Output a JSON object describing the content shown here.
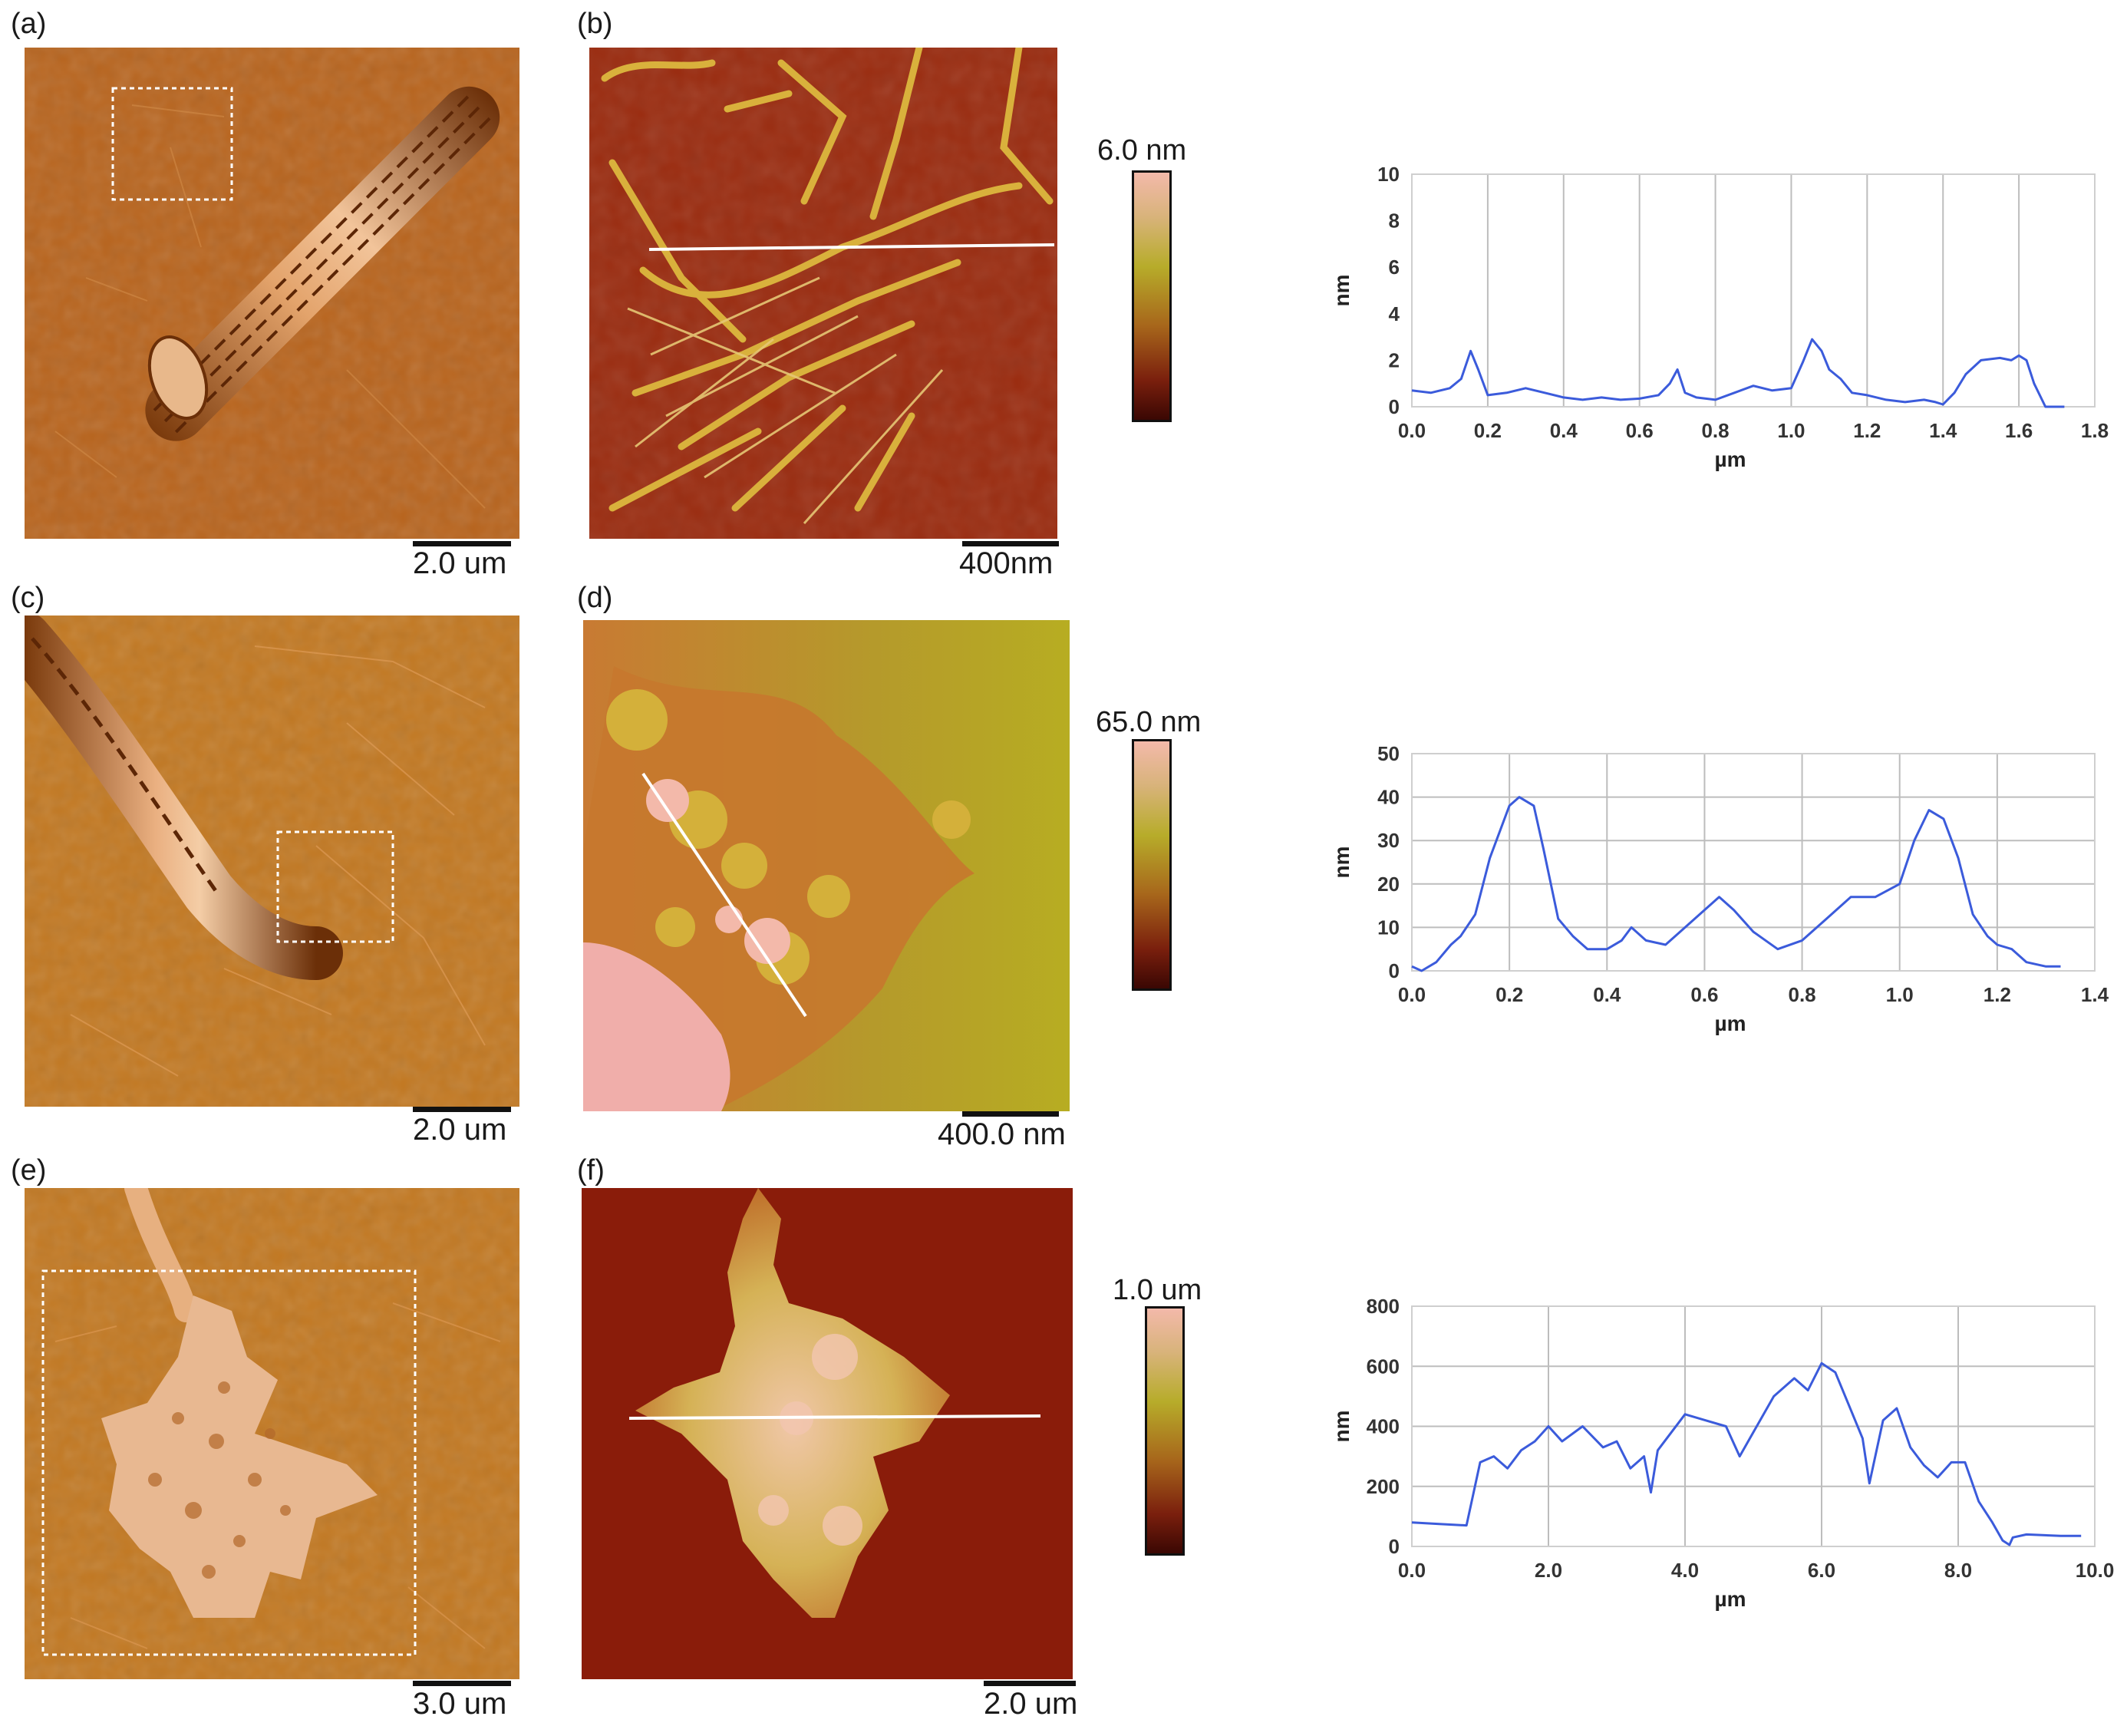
{
  "figure": {
    "rows": [
      {
        "amp_label": "(a)",
        "height_label": "(b)",
        "amp_scale": "2.0 um",
        "height_scale": "400nm",
        "colorbar_max": "6.0 nm",
        "colors": {
          "amp_bg": "#b8641d"
        }
      },
      {
        "amp_label": "(c)",
        "height_label": "(d)",
        "amp_scale": "2.0 um",
        "height_scale": "400.0 nm",
        "colorbar_max": "65.0 nm",
        "colors": {
          "amp_bg": "#c27821"
        }
      },
      {
        "amp_label": "(e)",
        "height_label": "(f)",
        "amp_scale": "3.0 um",
        "height_scale": "2.0 um",
        "colorbar_max": "1.0 um",
        "colors": {
          "amp_bg": "#c27821"
        }
      }
    ]
  },
  "chart_data": [
    {
      "type": "line",
      "xlabel": "µm",
      "ylabel": "nm",
      "xlim": [
        0,
        1.8
      ],
      "ylim": [
        0,
        10
      ],
      "xticks": [
        "0.0",
        "0.2",
        "0.4",
        "0.6",
        "0.8",
        "1.0",
        "1.2",
        "1.4",
        "1.6",
        "1.8"
      ],
      "yticks": [
        "0",
        "2",
        "4",
        "6",
        "8",
        "10"
      ],
      "grid": "vertical",
      "line_color": "#3b5bdb",
      "series": [
        {
          "x": [
            0.0,
            0.05,
            0.1,
            0.13,
            0.155,
            0.175,
            0.2,
            0.25,
            0.3,
            0.35,
            0.4,
            0.45,
            0.5,
            0.55,
            0.6,
            0.65,
            0.68,
            0.7,
            0.72,
            0.75,
            0.8,
            0.85,
            0.9,
            0.95,
            1.0,
            1.03,
            1.055,
            1.08,
            1.1,
            1.13,
            1.16,
            1.2,
            1.25,
            1.3,
            1.35,
            1.38,
            1.4,
            1.43,
            1.46,
            1.5,
            1.55,
            1.58,
            1.6,
            1.62,
            1.64,
            1.67,
            1.7,
            1.72
          ],
          "y": [
            0.7,
            0.6,
            0.8,
            1.2,
            2.4,
            1.6,
            0.5,
            0.6,
            0.8,
            0.6,
            0.4,
            0.3,
            0.4,
            0.3,
            0.35,
            0.5,
            1.0,
            1.6,
            0.6,
            0.4,
            0.3,
            0.6,
            0.9,
            0.7,
            0.8,
            1.9,
            2.9,
            2.4,
            1.6,
            1.2,
            0.6,
            0.5,
            0.3,
            0.2,
            0.3,
            0.2,
            0.1,
            0.6,
            1.4,
            2.0,
            2.1,
            2.0,
            2.2,
            2.0,
            1.0,
            0.0,
            0.0,
            0.0
          ]
        }
      ]
    },
    {
      "type": "line",
      "xlabel": "µm",
      "ylabel": "nm",
      "xlim": [
        0,
        1.4
      ],
      "ylim": [
        0,
        50
      ],
      "xticks": [
        "0.0",
        "0.2",
        "0.4",
        "0.6",
        "0.8",
        "1.0",
        "1.2",
        "1.4"
      ],
      "yticks": [
        "0",
        "10",
        "20",
        "30",
        "40",
        "50"
      ],
      "grid": "both",
      "line_color": "#3b5bdb",
      "series": [
        {
          "x": [
            0.0,
            0.02,
            0.05,
            0.08,
            0.1,
            0.13,
            0.16,
            0.2,
            0.22,
            0.25,
            0.27,
            0.3,
            0.33,
            0.36,
            0.4,
            0.43,
            0.45,
            0.48,
            0.52,
            0.55,
            0.6,
            0.63,
            0.66,
            0.7,
            0.75,
            0.8,
            0.85,
            0.9,
            0.95,
            1.0,
            1.03,
            1.06,
            1.09,
            1.12,
            1.15,
            1.18,
            1.2,
            1.23,
            1.26,
            1.3,
            1.33
          ],
          "y": [
            1,
            0,
            2,
            6,
            8,
            13,
            26,
            38,
            40,
            38,
            28,
            12,
            8,
            5,
            5,
            7,
            10,
            7,
            6,
            9,
            14,
            17,
            14,
            9,
            5,
            7,
            12,
            17,
            17,
            20,
            30,
            37,
            35,
            26,
            13,
            8,
            6,
            5,
            2,
            1,
            1
          ]
        }
      ]
    },
    {
      "type": "line",
      "xlabel": "µm",
      "ylabel": "nm",
      "xlim": [
        0,
        10
      ],
      "ylim": [
        0,
        800
      ],
      "xticks": [
        "0.0",
        "2.0",
        "4.0",
        "6.0",
        "8.0",
        "10.0"
      ],
      "yticks": [
        "0",
        "200",
        "400",
        "600",
        "800"
      ],
      "grid": "both",
      "line_color": "#3b5bdb",
      "series": [
        {
          "x": [
            0.0,
            0.4,
            0.8,
            1.0,
            1.2,
            1.4,
            1.6,
            1.8,
            2.0,
            2.2,
            2.5,
            2.8,
            3.0,
            3.2,
            3.4,
            3.5,
            3.6,
            3.8,
            4.0,
            4.3,
            4.6,
            4.8,
            5.0,
            5.3,
            5.6,
            5.8,
            6.0,
            6.2,
            6.4,
            6.6,
            6.7,
            6.9,
            7.1,
            7.3,
            7.5,
            7.7,
            7.9,
            8.1,
            8.3,
            8.5,
            8.65,
            8.75,
            8.8,
            9.0,
            9.5,
            9.8
          ],
          "y": [
            80,
            75,
            70,
            280,
            300,
            260,
            320,
            350,
            400,
            350,
            400,
            330,
            350,
            260,
            300,
            180,
            320,
            380,
            440,
            420,
            400,
            300,
            380,
            500,
            560,
            520,
            610,
            580,
            470,
            360,
            210,
            420,
            460,
            330,
            270,
            230,
            280,
            280,
            150,
            80,
            20,
            5,
            30,
            40,
            35,
            35
          ]
        }
      ]
    }
  ]
}
